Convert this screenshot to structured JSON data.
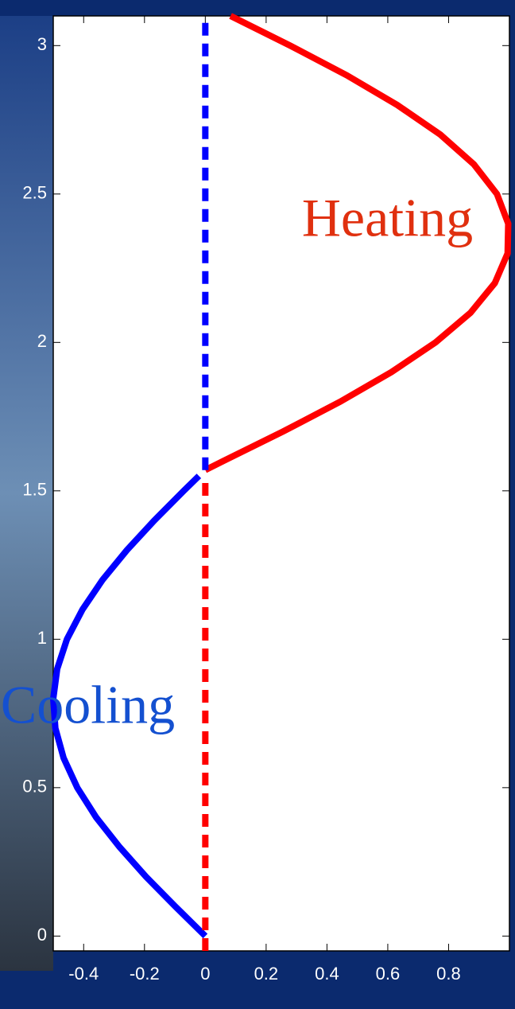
{
  "chart_data": {
    "type": "line",
    "xlim": [
      -0.5,
      1.0
    ],
    "xticks": [
      -0.4,
      -0.2,
      0,
      0.2,
      0.4,
      0.6,
      0.8
    ],
    "ylim": [
      -0.05,
      3.1
    ],
    "yticks": [
      0,
      0.5,
      1,
      1.5,
      2,
      2.5,
      3
    ],
    "annotations": [
      {
        "text": "Heating",
        "x": 0.88,
        "y": 2.4,
        "color": "#e0300f"
      },
      {
        "text": "Cooling",
        "x": -0.1,
        "y": 0.76,
        "color": "#1450d0"
      }
    ],
    "series": [
      {
        "color": "#0000ff",
        "style": "solid",
        "x": [
          0,
          -0.099,
          -0.195,
          -0.282,
          -0.359,
          -0.421,
          -0.466,
          -0.493,
          -0.5,
          -0.487,
          -0.455,
          -0.404,
          -0.338,
          -0.258,
          -0.168,
          -0.071,
          -0.021
        ],
        "y": [
          0,
          0.1,
          0.2,
          0.3,
          0.4,
          0.5,
          0.6,
          0.7,
          0.8,
          0.9,
          1.0,
          1.1,
          1.2,
          1.3,
          1.4,
          1.5,
          1.55
        ]
      },
      {
        "color": "#ff0000",
        "style": "solid",
        "x": [
          0,
          0.058,
          0.256,
          0.443,
          0.612,
          0.757,
          0.872,
          0.952,
          0.994,
          0.996,
          0.959,
          0.883,
          0.773,
          0.631,
          0.465,
          0.279,
          0.083
        ],
        "y": [
          1.57,
          1.6,
          1.7,
          1.8,
          1.9,
          2.0,
          2.1,
          2.2,
          2.3,
          2.4,
          2.5,
          2.6,
          2.7,
          2.8,
          2.9,
          3.0,
          3.1
        ]
      },
      {
        "color": "#ff0000",
        "style": "dashed",
        "x": [
          0,
          0
        ],
        "y": [
          -0.05,
          1.55
        ]
      },
      {
        "color": "#0000ff",
        "style": "dashed",
        "x": [
          0,
          0
        ],
        "y": [
          1.57,
          3.1
        ]
      }
    ]
  }
}
